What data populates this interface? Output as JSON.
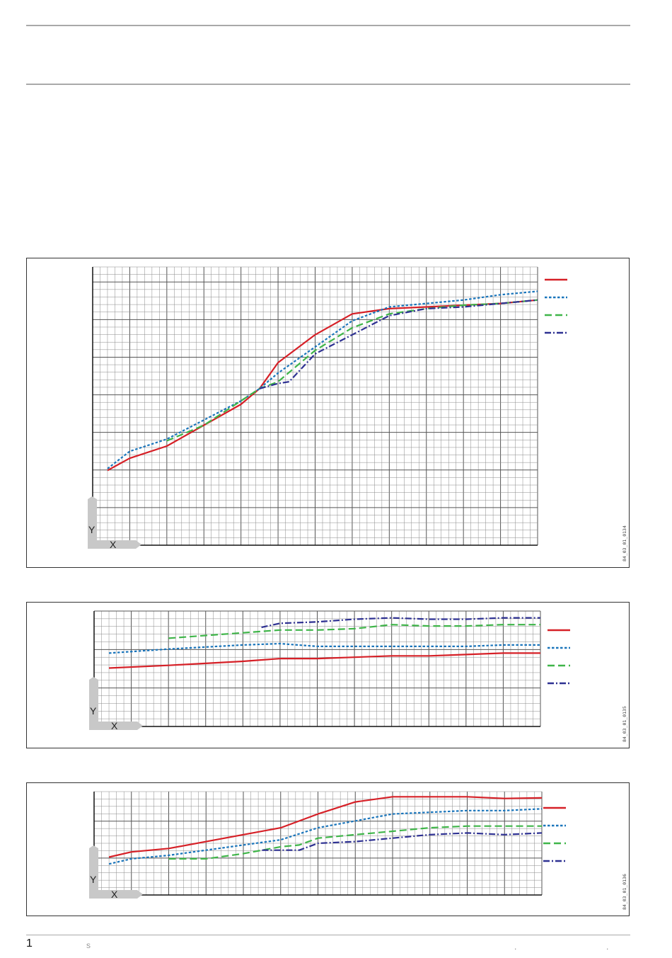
{
  "footer": {
    "page_number": "1",
    "section_letter": "s",
    "dot_a": ".",
    "dot_b": "."
  },
  "colors": {
    "series_1": "#d62027",
    "series_2": "#1a75bb",
    "series_3": "#3fb549",
    "series_4": "#2e3192",
    "grid_minor": "#8a8a8a",
    "grid_major": "#555555",
    "axis_corner": "#c8c8c8"
  },
  "chart_data": [
    {
      "type": "line",
      "code": "84_03_01_0134",
      "axis_x_symbol": "X",
      "axis_y_symbol": "Y",
      "grid": true,
      "legend_position": "top-right",
      "xlim": [
        0,
        12
      ],
      "ylim": [
        0,
        8
      ],
      "series": [
        {
          "style": "solid",
          "color": "#d62027",
          "x": [
            0.4,
            1.0,
            2.0,
            3.0,
            4.0,
            4.5,
            5.0,
            6.0,
            7.0,
            8.0,
            9.0,
            10.0,
            11.0,
            12.0
          ],
          "y": [
            2.15,
            2.5,
            2.85,
            3.45,
            4.05,
            4.5,
            5.25,
            6.05,
            6.65,
            6.8,
            6.85,
            6.9,
            6.95,
            7.05
          ]
        },
        {
          "style": "short-dash",
          "color": "#1a75bb",
          "x": [
            0.4,
            1.0,
            2.0,
            3.0,
            4.0,
            4.5,
            5.0,
            6.0,
            7.0,
            8.0,
            9.0,
            10.0,
            11.0,
            12.0
          ],
          "y": [
            2.2,
            2.7,
            3.05,
            3.6,
            4.15,
            4.5,
            4.95,
            5.7,
            6.45,
            6.85,
            6.95,
            7.05,
            7.2,
            7.3
          ]
        },
        {
          "style": "long-dash",
          "color": "#3fb549",
          "x": [
            2.0,
            3.0,
            4.0,
            4.5,
            5.0,
            6.0,
            7.0,
            8.0,
            9.0,
            10.0,
            11.0,
            12.0
          ],
          "y": [
            3.0,
            3.45,
            4.15,
            4.5,
            4.7,
            5.6,
            6.25,
            6.65,
            6.8,
            6.9,
            6.95,
            7.05
          ]
        },
        {
          "style": "dash-dot",
          "color": "#2e3192",
          "x": [
            4.5,
            5.0,
            5.3,
            6.0,
            7.0,
            8.0,
            9.0,
            10.0,
            11.0,
            12.0
          ],
          "y": [
            4.5,
            4.65,
            4.7,
            5.5,
            6.05,
            6.6,
            6.8,
            6.85,
            6.95,
            7.05
          ]
        }
      ]
    },
    {
      "type": "line",
      "code": "84_03_01_0135",
      "axis_x_symbol": "X",
      "axis_y_symbol": "Y",
      "grid": true,
      "legend_position": "top-right",
      "xlim": [
        0,
        12
      ],
      "ylim": [
        0,
        4.25
      ],
      "series": [
        {
          "style": "solid",
          "color": "#d62027",
          "x": [
            0.4,
            2.0,
            4.0,
            5.0,
            6.0,
            7.0,
            8.0,
            9.0,
            10.0,
            11.0,
            12.0
          ],
          "y": [
            2.15,
            2.25,
            2.4,
            2.5,
            2.5,
            2.55,
            2.6,
            2.6,
            2.65,
            2.7,
            2.7
          ]
        },
        {
          "style": "short-dash",
          "color": "#1a75bb",
          "x": [
            0.4,
            2.0,
            4.0,
            5.0,
            6.0,
            7.0,
            8.0,
            9.0,
            10.0,
            11.0,
            12.0
          ],
          "y": [
            2.7,
            2.85,
            3.0,
            3.05,
            2.95,
            2.95,
            2.95,
            2.95,
            2.95,
            3.0,
            3.0
          ]
        },
        {
          "style": "long-dash",
          "color": "#3fb549",
          "x": [
            2.0,
            3.0,
            4.0,
            5.0,
            6.0,
            7.0,
            8.0,
            9.0,
            10.0,
            11.0,
            12.0
          ],
          "y": [
            3.25,
            3.35,
            3.45,
            3.55,
            3.55,
            3.6,
            3.75,
            3.7,
            3.7,
            3.75,
            3.75
          ]
        },
        {
          "style": "dash-dot",
          "color": "#2e3192",
          "x": [
            4.5,
            5.0,
            6.0,
            7.0,
            8.0,
            9.0,
            10.0,
            11.0,
            12.0
          ],
          "y": [
            3.65,
            3.8,
            3.85,
            3.95,
            4.0,
            3.95,
            3.95,
            4.0,
            4.0
          ]
        }
      ]
    },
    {
      "type": "line",
      "code": "84_03_01_0136",
      "axis_x_symbol": "X",
      "axis_y_symbol": "Y",
      "grid": true,
      "legend_position": "top-right",
      "xlim": [
        0,
        12
      ],
      "ylim": [
        0,
        3
      ],
      "series": [
        {
          "style": "solid",
          "color": "#d62027",
          "x": [
            0.4,
            1.0,
            2.0,
            3.0,
            4.0,
            5.0,
            6.0,
            7.0,
            8.0,
            9.0,
            10.0,
            11.0,
            12.0
          ],
          "y": [
            1.1,
            1.25,
            1.35,
            1.55,
            1.75,
            1.95,
            2.35,
            2.7,
            2.85,
            2.85,
            2.85,
            2.8,
            2.82
          ]
        },
        {
          "style": "short-dash",
          "color": "#1a75bb",
          "x": [
            0.4,
            1.0,
            2.0,
            3.0,
            4.0,
            5.0,
            6.0,
            7.0,
            8.0,
            9.0,
            10.0,
            11.0,
            12.0
          ],
          "y": [
            0.9,
            1.05,
            1.15,
            1.3,
            1.45,
            1.6,
            1.95,
            2.15,
            2.35,
            2.4,
            2.45,
            2.45,
            2.5
          ]
        },
        {
          "style": "long-dash",
          "color": "#3fb549",
          "x": [
            2.0,
            2.5,
            3.0,
            4.0,
            5.0,
            5.5,
            6.0,
            7.0,
            8.0,
            9.0,
            10.0,
            11.0,
            12.0
          ],
          "y": [
            1.05,
            1.05,
            1.05,
            1.2,
            1.4,
            1.45,
            1.65,
            1.75,
            1.85,
            1.95,
            2.0,
            2.0,
            2.0
          ]
        },
        {
          "style": "dash-dot",
          "color": "#2e3192",
          "x": [
            4.5,
            5.0,
            5.5,
            6.0,
            7.0,
            8.0,
            9.0,
            10.0,
            11.0,
            12.0
          ],
          "y": [
            1.3,
            1.3,
            1.3,
            1.5,
            1.55,
            1.65,
            1.75,
            1.8,
            1.75,
            1.8
          ]
        }
      ]
    }
  ]
}
